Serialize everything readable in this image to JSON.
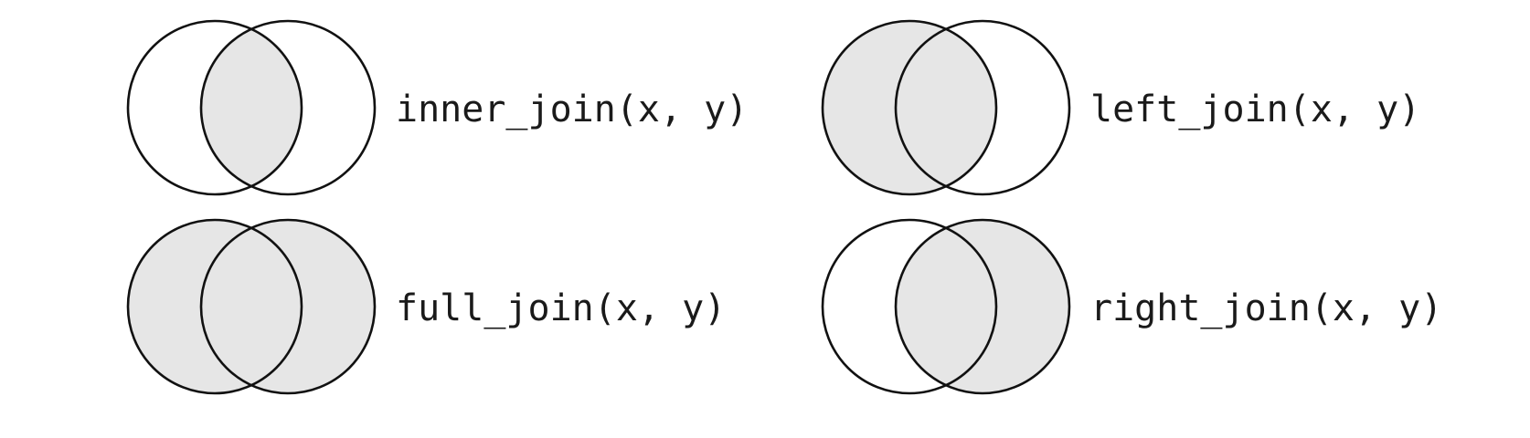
{
  "colors": {
    "fill": "#e6e6e6",
    "stroke": "#111111",
    "background": "#ffffff"
  },
  "joins": [
    {
      "label": "inner_join(x, y)",
      "shade": "intersection"
    },
    {
      "label": "left_join(x, y)",
      "shade": "left"
    },
    {
      "label": "full_join(x, y)",
      "shade": "both"
    },
    {
      "label": "right_join(x, y)",
      "shade": "right"
    }
  ]
}
